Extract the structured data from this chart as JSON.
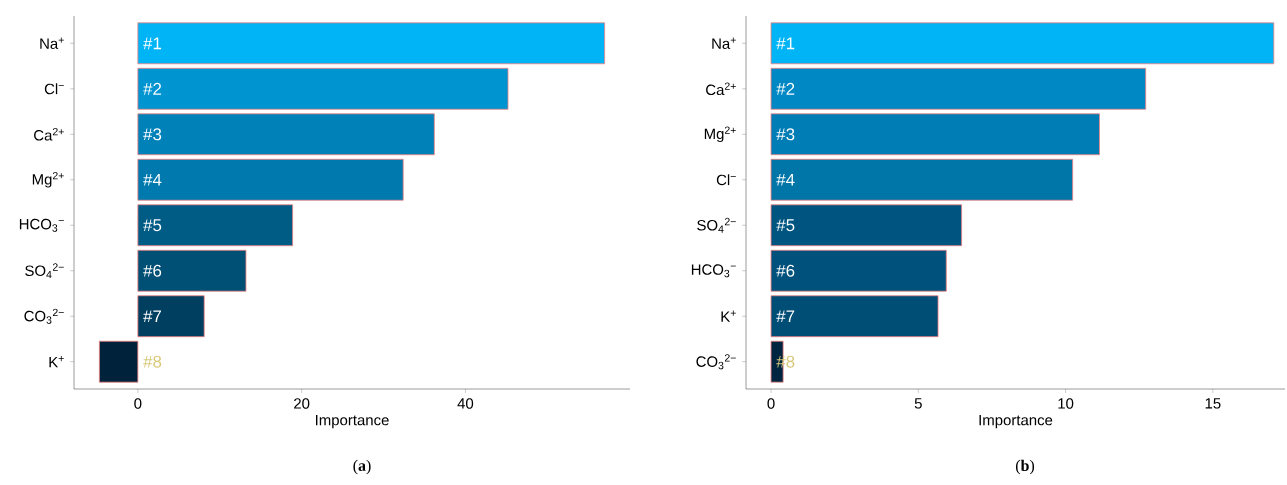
{
  "chart_data": [
    {
      "type": "bar",
      "orientation": "horizontal",
      "xlabel": "Importance",
      "categories": [
        "Na$^{+}$",
        "Cl$^{−}$",
        "Ca$^{2+}$",
        "Mg$^{2+}$",
        "HCO$_{3}$$^{−}$",
        "SO$_{4}$$^{2−}$",
        "CO$_{3}$$^{2−}$",
        "K$^{+}$"
      ],
      "values": [
        57.0,
        45.2,
        36.2,
        32.4,
        18.9,
        13.2,
        8.1,
        -4.7
      ],
      "colors": [
        "#00b4f5",
        "#0094d0",
        "#0081b8",
        "#0079ae",
        "#005b85",
        "#004f75",
        "#003f60",
        "#00223a"
      ],
      "xlim": [
        -7.8,
        60.1
      ],
      "xticks": [
        0,
        20,
        40
      ],
      "grid": false,
      "annotations": [
        "#1",
        "#2",
        "#3",
        "#4",
        "#5",
        "#6",
        "#7",
        "#8",
        "(**a**)"
      ]
    },
    {
      "type": "bar",
      "orientation": "horizontal",
      "xlabel": "Importance",
      "categories": [
        "Na$^{+}$",
        "Ca$^{2+}$",
        "Mg$^{2+}$",
        "Cl$^{−}$",
        "SO$_{4}$$^{2−}$",
        "HCO$_{3}$$^{−}$",
        "K$^{+}$",
        "CO$_{3}$$^{2−}$"
      ],
      "values": [
        17.07,
        12.72,
        11.15,
        10.24,
        6.47,
        5.95,
        5.67,
        0.41
      ],
      "colors": [
        "#00b4f5",
        "#0088c4",
        "#007db5",
        "#0075a8",
        "#005580",
        "#00527c",
        "#004e76",
        "#002540"
      ],
      "xlim": [
        -0.85,
        17.45
      ],
      "xticks": [
        0,
        5,
        10,
        15
      ],
      "grid": false,
      "annotations": [
        "#1",
        "#2",
        "#3",
        "#4",
        "#5",
        "#6",
        "#7",
        "#8",
        "(**b**)"
      ]
    }
  ]
}
